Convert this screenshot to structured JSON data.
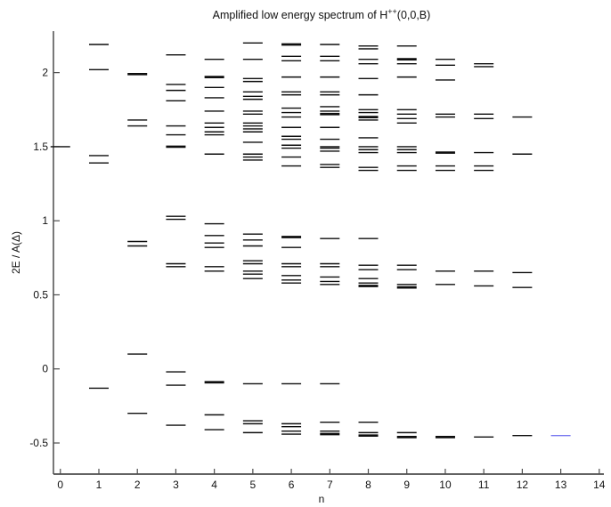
{
  "figure": {
    "title": {
      "pre": "Amplified low energy spectrum of H",
      "sup": "++",
      "post": "(0,0,B)"
    },
    "xlabel": "n",
    "ylabel": "2E / A(Δ)"
  },
  "chart_data": {
    "type": "scatter",
    "marker": "horizontal-segment",
    "title": "Amplified low energy spectrum of H++(0,0,B)",
    "xlabel": "n",
    "ylabel": "2E / A(Δ)",
    "xlim": [
      -0.18,
      14.12
    ],
    "ylim": [
      -0.71,
      2.28
    ],
    "x_ticks": [
      0,
      1,
      2,
      3,
      4,
      5,
      6,
      7,
      8,
      9,
      10,
      11,
      12,
      13,
      14
    ],
    "y_ticks": [
      -0.5,
      0,
      0.5,
      1,
      1.5,
      2
    ],
    "y_tick_labels": [
      "-0.5",
      "0",
      "0.5",
      "1",
      "1.5",
      "2"
    ],
    "grid": false,
    "legend": "none",
    "level_color": "#0d0d0d",
    "highlight_color": "#7878f0",
    "axis_color": "#4d4d4d",
    "levels": [
      {
        "n": 0,
        "values": [
          1.5
        ]
      },
      {
        "n": 1,
        "values": [
          2.19,
          2.02,
          1.44,
          1.39,
          -0.13
        ]
      },
      {
        "n": 2,
        "values": [
          1.99,
          1.68,
          1.64,
          0.86,
          0.83,
          0.1,
          -0.3
        ],
        "bold": [
          1.99
        ]
      },
      {
        "n": 3,
        "values": [
          2.12,
          1.92,
          1.88,
          1.81,
          1.64,
          1.58,
          1.5,
          1.03,
          1.01,
          0.71,
          0.69,
          -0.02,
          -0.11,
          -0.38
        ],
        "bold": [
          1.5
        ]
      },
      {
        "n": 4,
        "values": [
          2.09,
          1.97,
          1.9,
          1.83,
          1.74,
          1.66,
          1.63,
          1.6,
          1.58,
          1.45,
          0.98,
          0.9,
          0.85,
          0.82,
          0.69,
          0.66,
          -0.09,
          -0.31,
          -0.41
        ],
        "bold": [
          1.97,
          -0.09
        ]
      },
      {
        "n": 5,
        "values": [
          2.2,
          2.09,
          1.96,
          1.94,
          1.87,
          1.84,
          1.82,
          1.74,
          1.72,
          1.66,
          1.64,
          1.62,
          1.6,
          1.53,
          1.45,
          1.43,
          1.41,
          0.91,
          0.87,
          0.83,
          0.73,
          0.71,
          0.66,
          0.64,
          0.61,
          -0.1,
          -0.35,
          -0.37,
          -0.43
        ]
      },
      {
        "n": 6,
        "values": [
          2.19,
          2.11,
          2.08,
          1.97,
          1.87,
          1.85,
          1.76,
          1.73,
          1.7,
          1.63,
          1.57,
          1.55,
          1.51,
          1.49,
          1.43,
          1.37,
          0.89,
          0.82,
          0.71,
          0.69,
          0.63,
          0.6,
          0.58,
          -0.1,
          -0.37,
          -0.39,
          -0.42,
          -0.44
        ],
        "bold": [
          2.19,
          0.89
        ]
      },
      {
        "n": 7,
        "values": [
          2.19,
          2.11,
          2.08,
          1.97,
          1.87,
          1.85,
          1.77,
          1.74,
          1.72,
          1.63,
          1.55,
          1.5,
          1.49,
          1.47,
          1.38,
          1.36,
          0.88,
          0.71,
          0.69,
          0.62,
          0.59,
          0.57,
          -0.1,
          -0.36,
          -0.42,
          -0.44
        ],
        "bold": [
          1.72,
          -0.44
        ]
      },
      {
        "n": 8,
        "values": [
          2.18,
          2.16,
          2.09,
          2.06,
          1.96,
          1.85,
          1.75,
          1.73,
          1.7,
          1.68,
          1.56,
          1.5,
          1.48,
          1.46,
          1.36,
          1.34,
          0.88,
          0.7,
          0.67,
          0.61,
          0.58,
          0.56,
          -0.36,
          -0.43,
          -0.45
        ],
        "bold": [
          1.7,
          0.56,
          -0.45
        ]
      },
      {
        "n": 9,
        "values": [
          2.18,
          2.09,
          2.06,
          1.97,
          1.75,
          1.72,
          1.69,
          1.66,
          1.5,
          1.48,
          1.46,
          1.37,
          1.34,
          0.7,
          0.67,
          0.57,
          0.55,
          -0.43,
          -0.46
        ],
        "bold": [
          2.09,
          0.55,
          -0.46
        ]
      },
      {
        "n": 10,
        "values": [
          2.09,
          2.05,
          1.95,
          1.72,
          1.7,
          1.46,
          1.37,
          1.34,
          0.66,
          0.57,
          -0.46
        ],
        "bold": [
          1.46,
          -0.46
        ]
      },
      {
        "n": 11,
        "values": [
          2.06,
          2.04,
          1.72,
          1.69,
          1.46,
          1.37,
          1.34,
          0.66,
          0.56,
          -0.46
        ]
      },
      {
        "n": 12,
        "values": [
          1.7,
          1.45,
          0.65,
          0.55,
          -0.45
        ]
      },
      {
        "n": 13,
        "values": [
          -0.45
        ],
        "color": "#7878f0"
      }
    ]
  }
}
